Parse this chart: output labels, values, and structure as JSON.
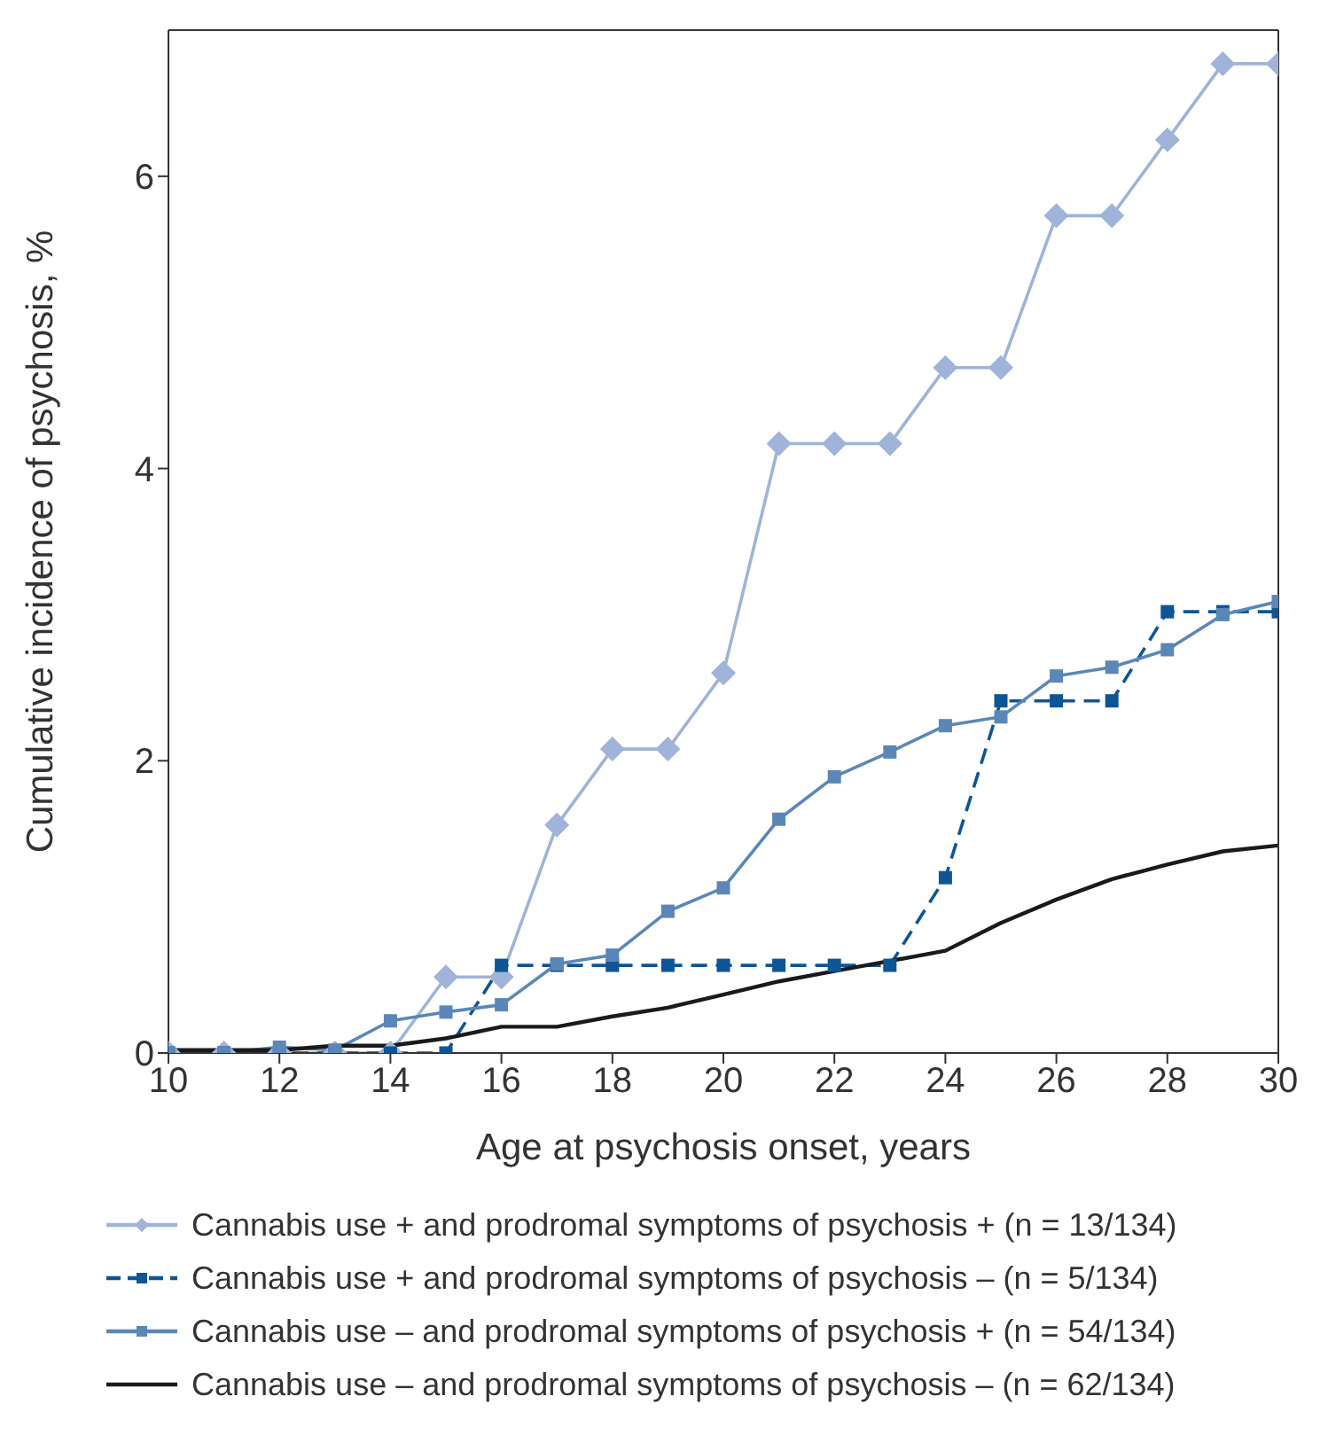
{
  "chart_data": {
    "type": "line",
    "xlabel": "Age at psychosis onset, years",
    "ylabel": "Cumulative incidence of psychosis, %",
    "x": [
      10,
      11,
      12,
      13,
      14,
      15,
      16,
      17,
      18,
      19,
      20,
      21,
      22,
      23,
      24,
      25,
      26,
      27,
      28,
      29,
      30
    ],
    "xlim": [
      10,
      30
    ],
    "xticks": [
      10,
      12,
      14,
      16,
      18,
      20,
      22,
      24,
      26,
      28,
      30
    ],
    "ylim": [
      0,
      7
    ],
    "yticks": [
      0,
      2,
      4,
      6
    ],
    "grid": false,
    "legend": "bottom",
    "series": [
      {
        "name": "Cannabis use + and prodromal symptoms of psychosis + (n = 13/134)",
        "color": "#9fb4d8",
        "marker": "diamond",
        "line_style": "solid",
        "values": [
          0,
          0,
          0,
          0,
          0,
          0.52,
          0.52,
          1.56,
          2.08,
          2.08,
          2.6,
          4.17,
          4.17,
          4.17,
          4.69,
          4.69,
          5.73,
          5.73,
          6.25,
          6.77,
          6.77
        ]
      },
      {
        "name": "Cannabis use + and prodromal symptoms of psychosis – (n = 5/134)",
        "color": "#0e5596",
        "marker": "square",
        "line_style": "dashed",
        "values": [
          0,
          0,
          0,
          0,
          0,
          0,
          0.6,
          0.6,
          0.6,
          0.6,
          0.6,
          0.6,
          0.6,
          0.6,
          1.2,
          2.41,
          2.41,
          2.41,
          3.02,
          3.02,
          3.02
        ]
      },
      {
        "name": "Cannabis use – and prodromal symptoms of psychosis + (n = 54/134)",
        "color": "#5b87b8",
        "marker": "square",
        "line_style": "solid",
        "values": [
          0,
          0,
          0.04,
          0.02,
          0.22,
          0.28,
          0.33,
          0.61,
          0.67,
          0.97,
          1.13,
          1.6,
          1.89,
          2.06,
          2.24,
          2.3,
          2.58,
          2.64,
          2.76,
          3.0,
          3.09
        ]
      },
      {
        "name": "Cannabis use – and prodromal symptoms of psychosis – (n = 62/134)",
        "color": "#1a1a1a",
        "marker": "none",
        "line_style": "solid",
        "values": [
          0.02,
          0.02,
          0.02,
          0.05,
          0.05,
          0.1,
          0.18,
          0.18,
          0.25,
          0.31,
          0.4,
          0.49,
          0.56,
          0.63,
          0.7,
          0.89,
          1.05,
          1.19,
          1.29,
          1.38,
          1.42
        ]
      }
    ]
  }
}
